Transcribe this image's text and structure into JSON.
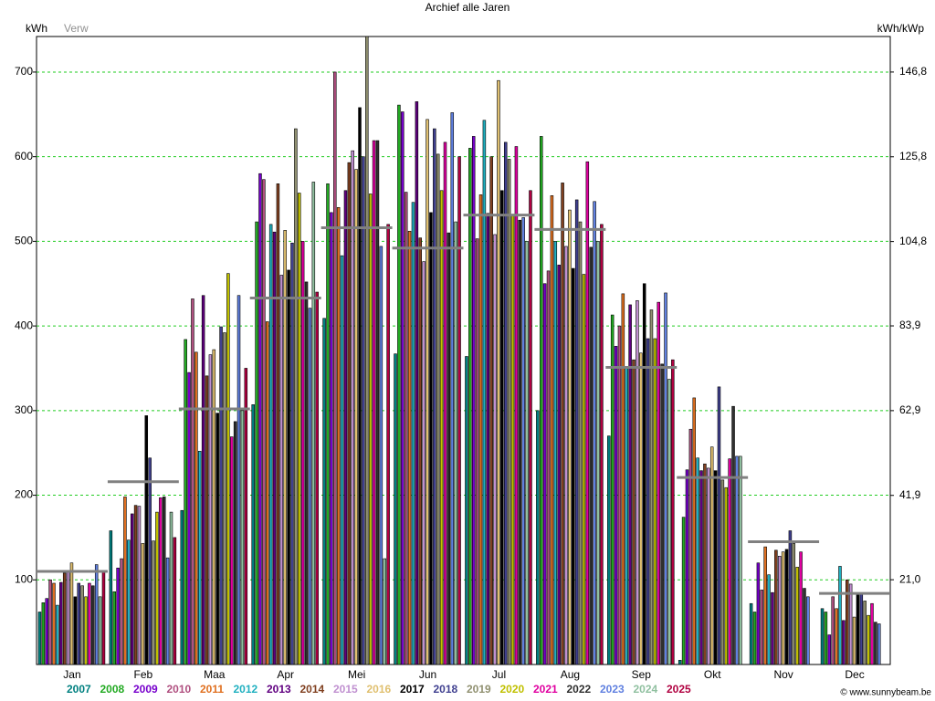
{
  "chart_data": {
    "type": "bar",
    "title": "Archief  alle Jaren",
    "y_label": "kWh",
    "y2_label": "kWh/kWp",
    "footer": "© www.sunnybeam.be",
    "categories": [
      "Jan",
      "Feb",
      "Maa",
      "Apr",
      "Mei",
      "Jun",
      "Jul",
      "Aug",
      "Sep",
      "Okt",
      "Nov",
      "Dec"
    ],
    "ylim": [
      0,
      742
    ],
    "yticks": [
      100,
      200,
      300,
      400,
      500,
      600,
      700
    ],
    "y2lim": [
      0,
      155.6
    ],
    "y2ticks": [
      {
        "value": 21.0,
        "label": "21,0"
      },
      {
        "value": 41.9,
        "label": "41,9"
      },
      {
        "value": 62.9,
        "label": "62,9"
      },
      {
        "value": 83.9,
        "label": "83,9"
      },
      {
        "value": 104.8,
        "label": "104,8"
      },
      {
        "value": 125.8,
        "label": "125,8"
      },
      {
        "value": 146.8,
        "label": "146,8"
      }
    ],
    "grid": true,
    "expected": {
      "name": "Verw",
      "color": "#808080",
      "values": [
        110,
        216,
        302,
        433,
        516,
        492,
        531,
        514,
        351,
        221,
        145,
        84
      ]
    },
    "series": [
      {
        "name": "2007",
        "color": "#008080",
        "values": [
          62,
          158,
          182,
          307,
          409,
          367,
          364,
          300,
          270,
          5,
          72,
          66
        ]
      },
      {
        "name": "2008",
        "color": "#22aa22",
        "values": [
          73,
          86,
          384,
          523,
          568,
          661,
          610,
          624,
          413,
          174,
          62,
          62
        ]
      },
      {
        "name": "2009",
        "color": "#7700cc",
        "values": [
          78,
          114,
          345,
          580,
          534,
          653,
          624,
          450,
          376,
          230,
          120,
          35
        ]
      },
      {
        "name": "2010",
        "color": "#b05080",
        "values": [
          100,
          125,
          432,
          573,
          700,
          558,
          503,
          465,
          400,
          278,
          88,
          80
        ]
      },
      {
        "name": "2011",
        "color": "#e07020",
        "values": [
          96,
          198,
          369,
          405,
          540,
          512,
          555,
          554,
          438,
          315,
          139,
          66
        ]
      },
      {
        "name": "2012",
        "color": "#20b0c0",
        "values": [
          70,
          147,
          252,
          520,
          483,
          546,
          643,
          500,
          350,
          244,
          106,
          116
        ]
      },
      {
        "name": "2013",
        "color": "#600080",
        "values": [
          97,
          178,
          436,
          511,
          560,
          665,
          533,
          472,
          425,
          229,
          85,
          52
        ]
      },
      {
        "name": "2014",
        "color": "#804020",
        "values": [
          108,
          188,
          341,
          568,
          593,
          504,
          600,
          569,
          360,
          237,
          135,
          100
        ]
      },
      {
        "name": "2015",
        "color": "#c090d0",
        "values": [
          110,
          187,
          366,
          460,
          607,
          476,
          508,
          494,
          430,
          232,
          128,
          95
        ]
      },
      {
        "name": "2016",
        "color": "#e0c070",
        "values": [
          120,
          143,
          372,
          513,
          585,
          644,
          690,
          537,
          368,
          257,
          133,
          56
        ]
      },
      {
        "name": "2017",
        "color": "#000000",
        "values": [
          80,
          294,
          297,
          466,
          658,
          534,
          560,
          468,
          450,
          229,
          136,
          83
        ]
      },
      {
        "name": "2018",
        "color": "#404090",
        "values": [
          96,
          244,
          399,
          498,
          600,
          633,
          617,
          549,
          385,
          328,
          158,
          83
        ]
      },
      {
        "name": "2019",
        "color": "#909070",
        "values": [
          93,
          146,
          392,
          633,
          742,
          603,
          597,
          523,
          419,
          218,
          143,
          75
        ]
      },
      {
        "name": "2020",
        "color": "#c0c000",
        "values": [
          80,
          180,
          462,
          557,
          556,
          560,
          530,
          461,
          385,
          209,
          115,
          58
        ]
      },
      {
        "name": "2021",
        "color": "#e000a0",
        "values": [
          96,
          197,
          269,
          500,
          619,
          617,
          612,
          594,
          428,
          243,
          133,
          72
        ]
      },
      {
        "name": "2022",
        "color": "#303030",
        "values": [
          93,
          198,
          287,
          452,
          619,
          510,
          525,
          493,
          355,
          305,
          90,
          50
        ]
      },
      {
        "name": "2023",
        "color": "#6080e0",
        "values": [
          118,
          126,
          436,
          421,
          494,
          652,
          528,
          547,
          439,
          246,
          80,
          48
        ]
      },
      {
        "name": "2024",
        "color": "#90c0a0",
        "values": [
          80,
          180,
          300,
          570,
          125,
          523,
          500,
          500,
          337,
          246,
          null,
          null
        ]
      },
      {
        "name": "2025",
        "color": "#b00040",
        "values": [
          110,
          150,
          350,
          440,
          520,
          600,
          560,
          520,
          360,
          null,
          null,
          null
        ]
      }
    ]
  }
}
